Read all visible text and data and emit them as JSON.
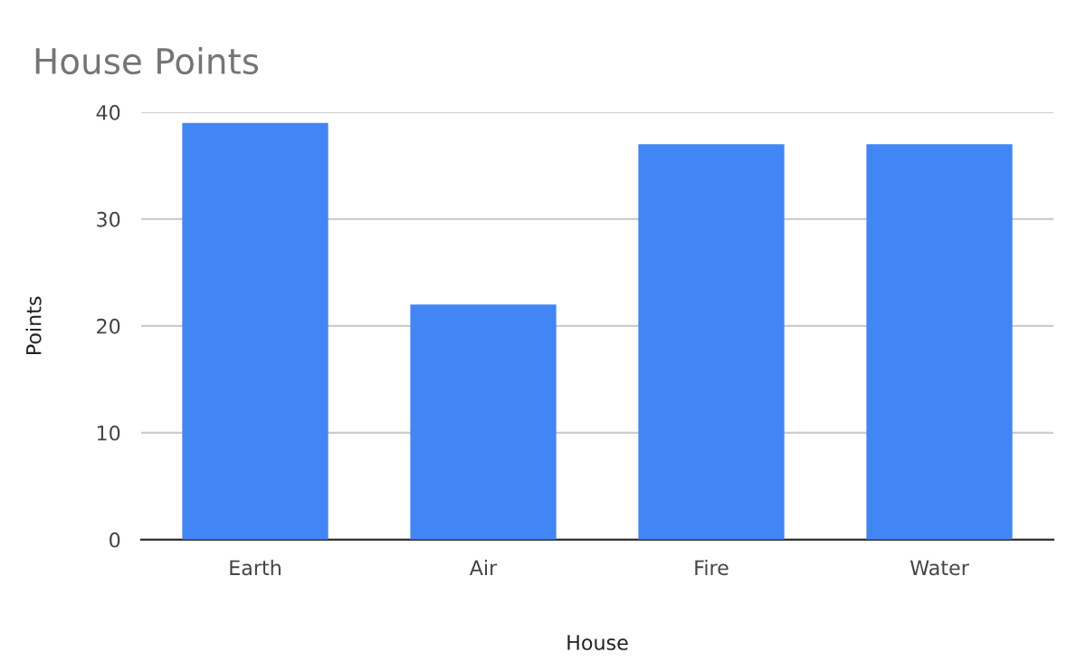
{
  "chart_data": {
    "type": "bar",
    "title": "House Points",
    "xlabel": "House",
    "ylabel": "Points",
    "categories": [
      "Earth",
      "Air",
      "Fire",
      "Water"
    ],
    "series": [
      {
        "color": "#4285f4",
        "values": [
          39,
          22,
          37,
          37
        ]
      }
    ],
    "ylim": [
      0,
      40
    ],
    "yticks": [
      0,
      10,
      20,
      30,
      40
    ],
    "grid": "y",
    "legend": false
  }
}
